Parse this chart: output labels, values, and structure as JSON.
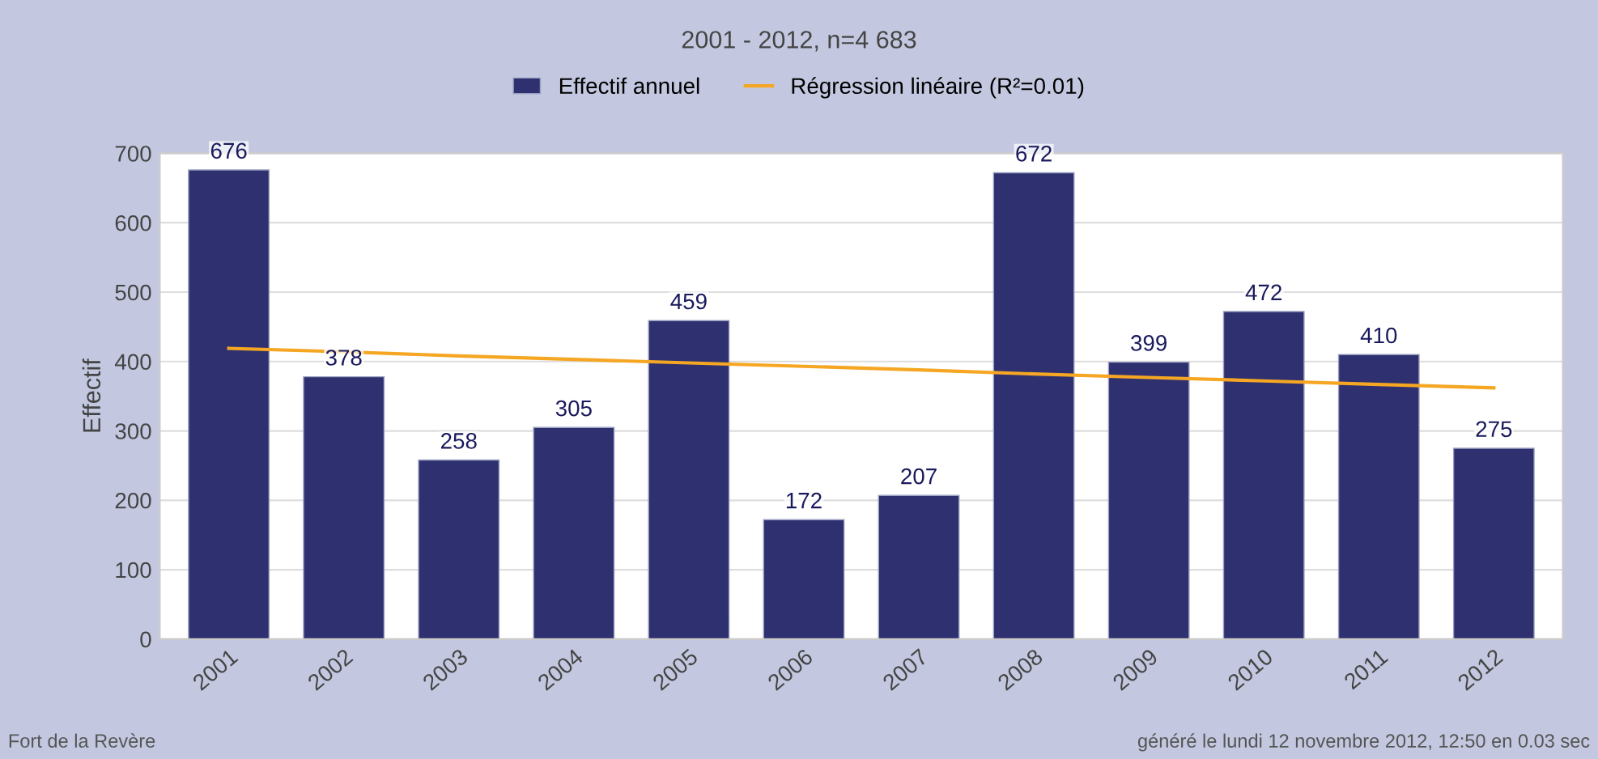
{
  "chart_data": {
    "type": "bar",
    "title": "2001 - 2012, n=4 683",
    "ylabel": "Effectif",
    "categories": [
      "2001",
      "2002",
      "2003",
      "2004",
      "2005",
      "2006",
      "2007",
      "2008",
      "2009",
      "2010",
      "2011",
      "2012"
    ],
    "series": [
      {
        "name": "Effectif annuel",
        "color": "#2e3070",
        "values": [
          676,
          378,
          258,
          305,
          459,
          172,
          207,
          672,
          399,
          472,
          410,
          275
        ],
        "value_labels": [
          "676",
          "378",
          "258",
          "305",
          "459",
          "172",
          "207",
          "672",
          "399",
          "472",
          "410",
          "275"
        ]
      },
      {
        "name": "Régression linéaire (R²=0.01)",
        "type": "line",
        "color": "#f5a623",
        "values": [
          419,
          414,
          408,
          403,
          398,
          393,
          388,
          382,
          377,
          372,
          367,
          362
        ]
      }
    ],
    "ylim": [
      0,
      700
    ],
    "yticks": [
      0,
      100,
      200,
      300,
      400,
      500,
      600,
      700
    ],
    "grid": "y",
    "legend": "top",
    "marker": "none",
    "line_style": "solid",
    "annotations": [
      "Fort de la Revère",
      "généré le lundi 12 novembre 2012, 12:50 en 0.03 sec"
    ]
  }
}
